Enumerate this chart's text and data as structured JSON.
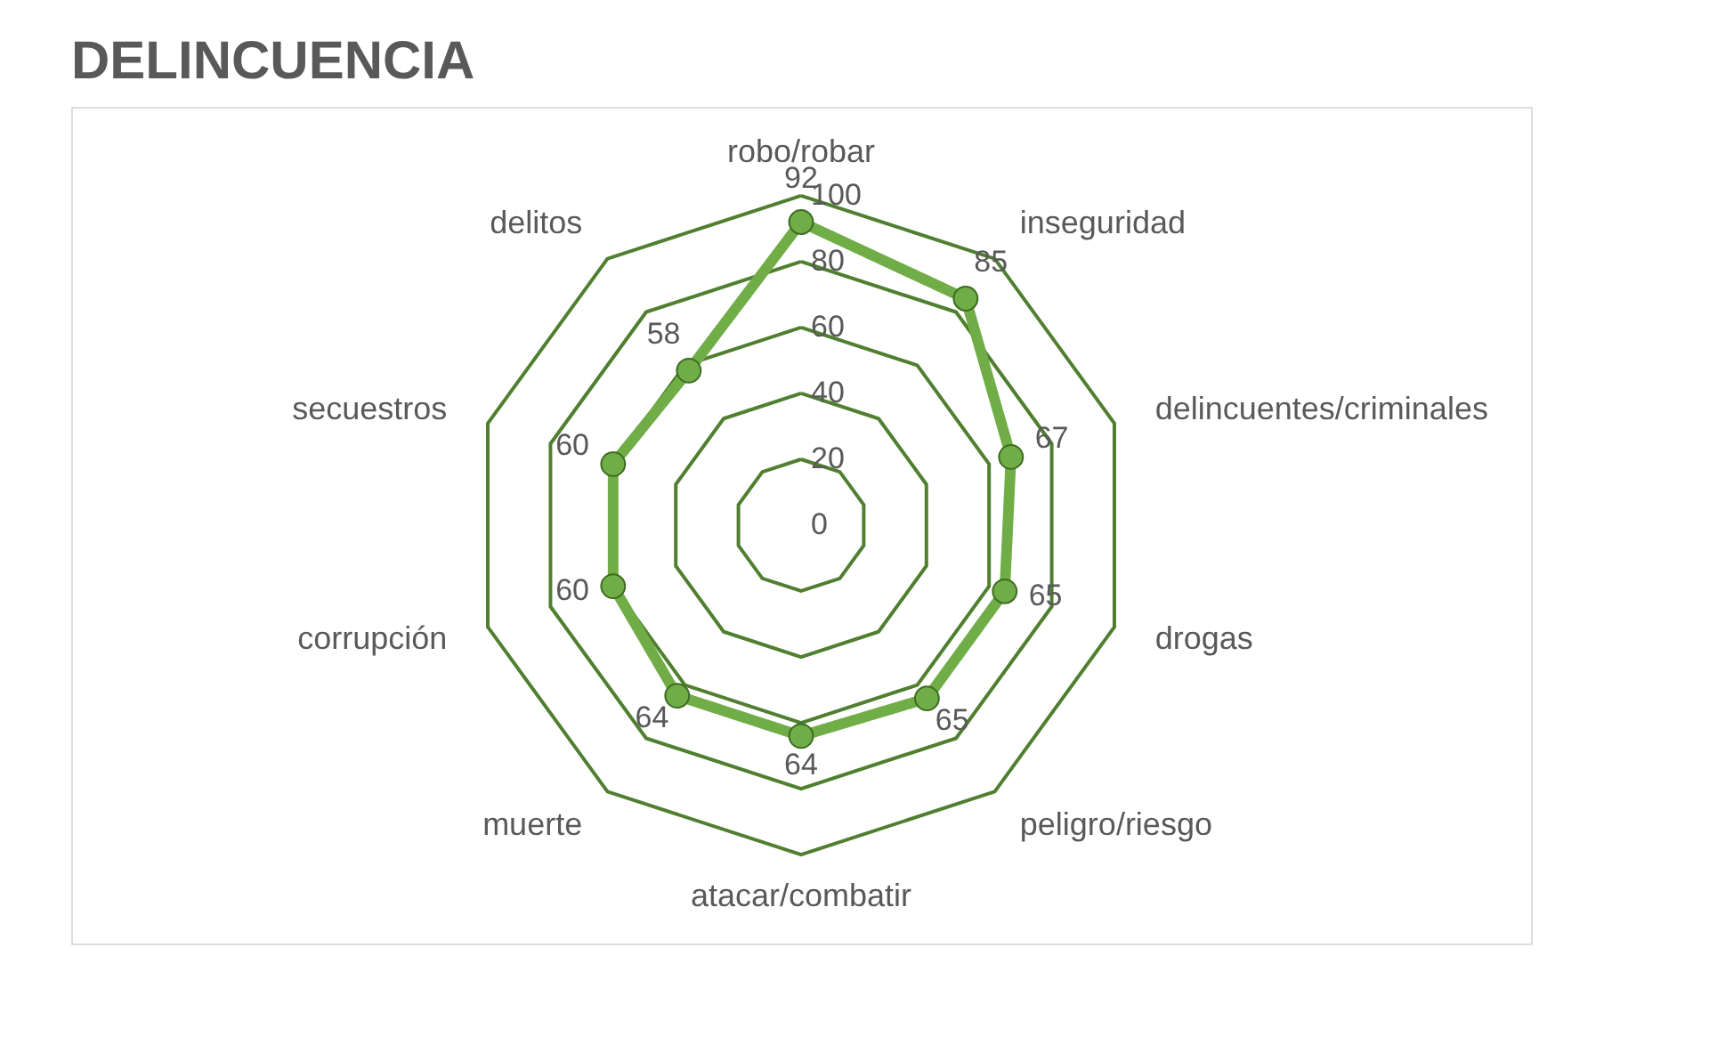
{
  "chart_data": {
    "type": "radar",
    "title": "DELINCUENCIA",
    "categories": [
      "robo/robar",
      "inseguridad",
      "delincuentes/criminales",
      "drogas",
      "peligro/riesgo",
      "atacar/combatir",
      "muerte",
      "corrupción",
      "secuestros",
      "delitos"
    ],
    "series": [
      {
        "color": "#70ad47",
        "values": [
          92,
          85,
          67,
          65,
          65,
          64,
          64,
          60,
          60,
          58
        ]
      }
    ],
    "ylim": [
      0,
      100
    ],
    "yticks": [
      0,
      20,
      40,
      60,
      80,
      100
    ],
    "grid": true,
    "marker": "circle",
    "line_style": "solid",
    "data_labels": true
  }
}
